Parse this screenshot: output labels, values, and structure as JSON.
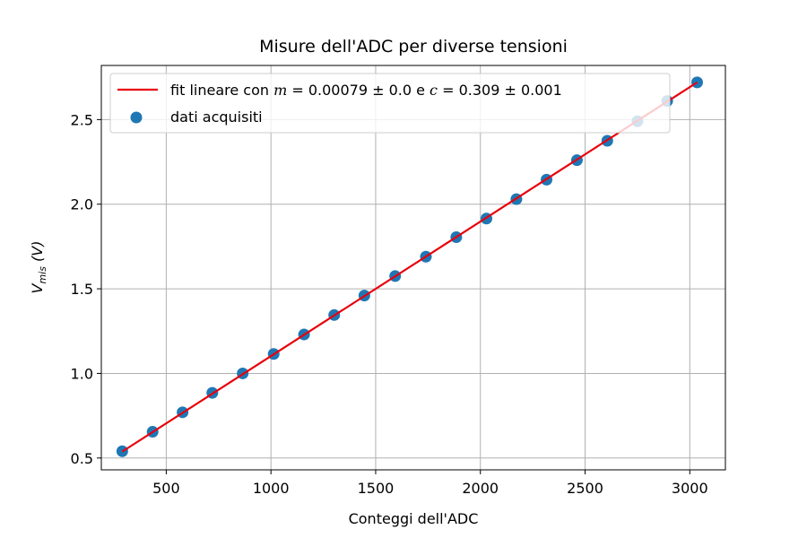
{
  "chart_data": {
    "type": "scatter",
    "title": "Misure dell'ADC per diverse tensioni",
    "xlabel": "Conteggi dell'ADC",
    "ylabel": "V_mis (V)",
    "ylabel_main": "V",
    "ylabel_sub": "mis",
    "ylabel_unit": " (V)",
    "xlim": [
      190,
      3170
    ],
    "ylim": [
      0.43,
      2.82
    ],
    "xticks": [
      500,
      1000,
      1500,
      2000,
      2500,
      3000
    ],
    "xtick_labels": [
      "500",
      "1000",
      "1500",
      "2000",
      "2500",
      "3000"
    ],
    "yticks": [
      0.5,
      1.0,
      1.5,
      2.0,
      2.5
    ],
    "ytick_labels": [
      "0.5",
      "1.0",
      "1.5",
      "2.0",
      "2.5"
    ],
    "grid": true,
    "legend_position": "top-left",
    "series": [
      {
        "name": "fit lineare con m = 0.00079 ± 0.0 e c = 0.309 ± 0.001",
        "kind": "line",
        "color": "#e8000b",
        "x": [
          290,
          3035
        ],
        "y": [
          0.538,
          2.72
        ]
      },
      {
        "name": "dati acquisiti",
        "kind": "scatter",
        "color": "#1f77b4",
        "x": [
          290,
          435,
          578,
          720,
          865,
          1013,
          1158,
          1302,
          1446,
          1593,
          1740,
          1885,
          2029,
          2172,
          2316,
          2461,
          2606,
          2750,
          2892,
          3035
        ],
        "y": [
          0.54,
          0.655,
          0.77,
          0.885,
          1.0,
          1.115,
          1.23,
          1.345,
          1.46,
          1.575,
          1.69,
          1.805,
          1.915,
          2.03,
          2.145,
          2.26,
          2.375,
          2.49,
          2.61,
          2.72
        ]
      }
    ]
  },
  "legend": {
    "fit": {
      "prefix": "fit lineare con ",
      "m_symbol": "m",
      "m_value": " = 0.00079 ± 0.0 e ",
      "c_symbol": "c",
      "c_value": " = 0.309 ± 0.001"
    },
    "data_label": "dati acquisiti"
  },
  "colors": {
    "grid": "#b0b0b0",
    "axes": "#000000",
    "fit_line": "#e8000b",
    "points": "#1f77b4"
  }
}
